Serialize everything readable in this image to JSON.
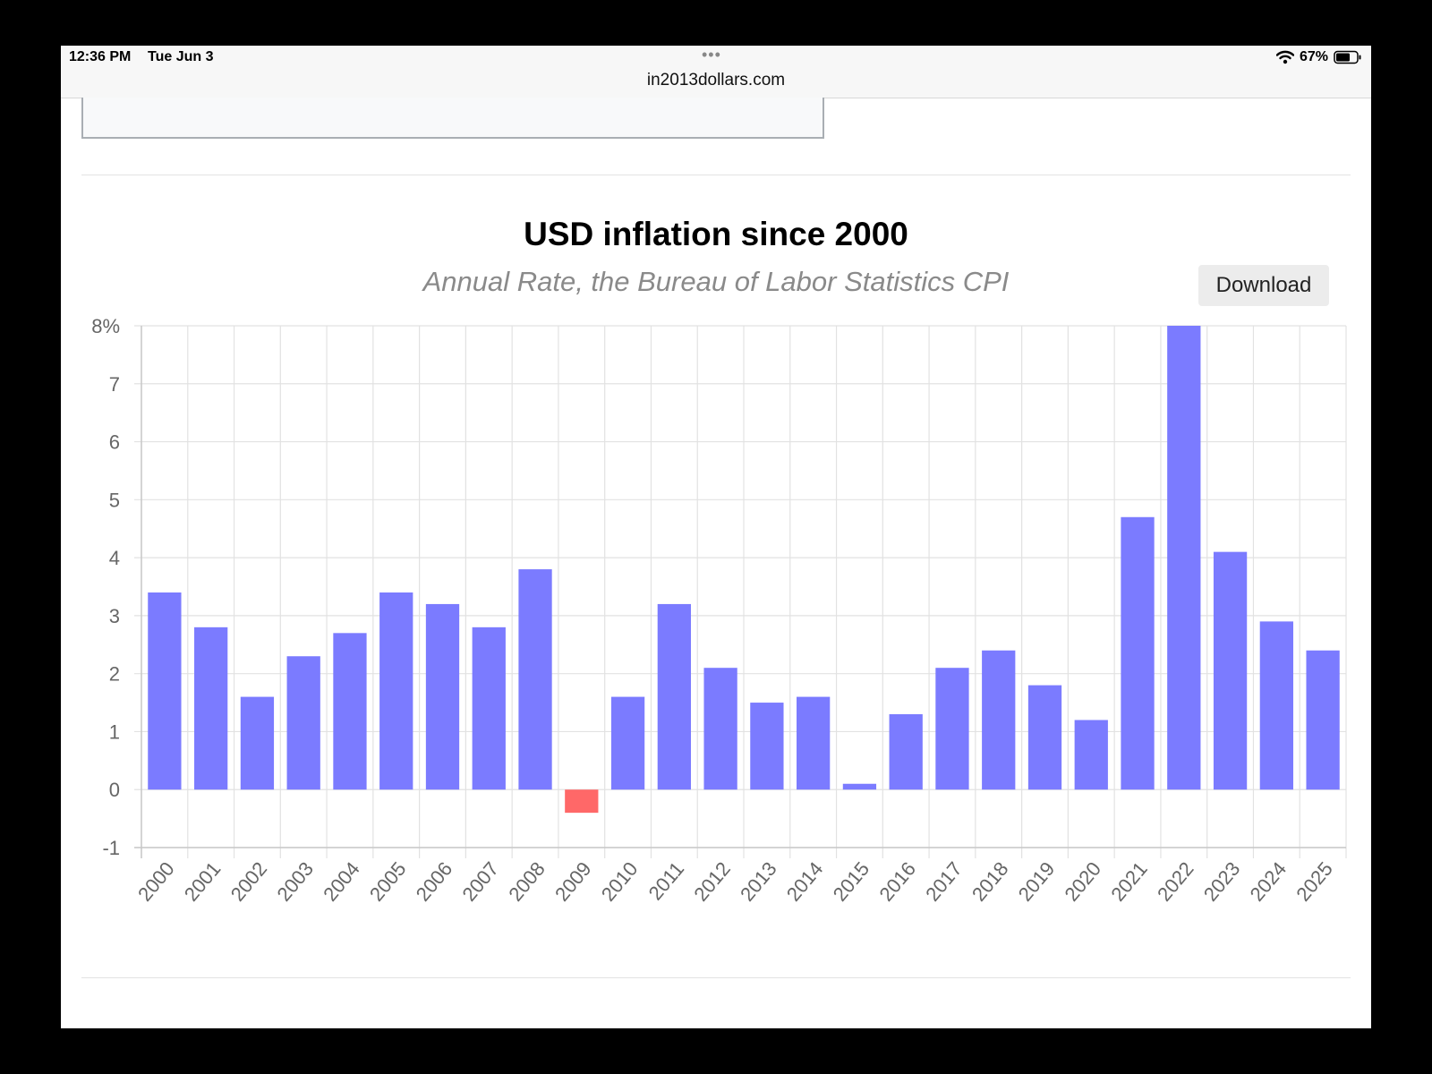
{
  "status_bar": {
    "time": "12:36 PM",
    "date": "Tue Jun 3",
    "dots": "•••",
    "url": "in2013dollars.com",
    "battery": "67%"
  },
  "toolbar": {
    "download_label": "Download"
  },
  "colors": {
    "positive_bar": "#7b7bff",
    "negative_bar": "#ff6868",
    "grid": "#e2e2e2",
    "tick_text": "#666666"
  },
  "chart_data": {
    "type": "bar",
    "title": "USD inflation since 2000",
    "subtitle": "Annual Rate, the Bureau of Labor Statistics CPI",
    "xlabel": "",
    "ylabel": "",
    "y_tick_suffix": "%",
    "ylim": [
      -1,
      8
    ],
    "y_ticks": [
      8,
      7,
      6,
      5,
      4,
      3,
      2,
      1,
      0,
      -1
    ],
    "grid": true,
    "legend": "none",
    "categories": [
      "2000",
      "2001",
      "2002",
      "2003",
      "2004",
      "2005",
      "2006",
      "2007",
      "2008",
      "2009",
      "2010",
      "2011",
      "2012",
      "2013",
      "2014",
      "2015",
      "2016",
      "2017",
      "2018",
      "2019",
      "2020",
      "2021",
      "2022",
      "2023",
      "2024",
      "2025"
    ],
    "values": [
      3.4,
      2.8,
      1.6,
      2.3,
      2.7,
      3.4,
      3.2,
      2.8,
      3.8,
      -0.4,
      1.6,
      3.2,
      2.1,
      1.5,
      1.6,
      0.1,
      1.3,
      2.1,
      2.4,
      1.8,
      1.2,
      4.7,
      8.0,
      4.1,
      2.9,
      2.4
    ]
  }
}
